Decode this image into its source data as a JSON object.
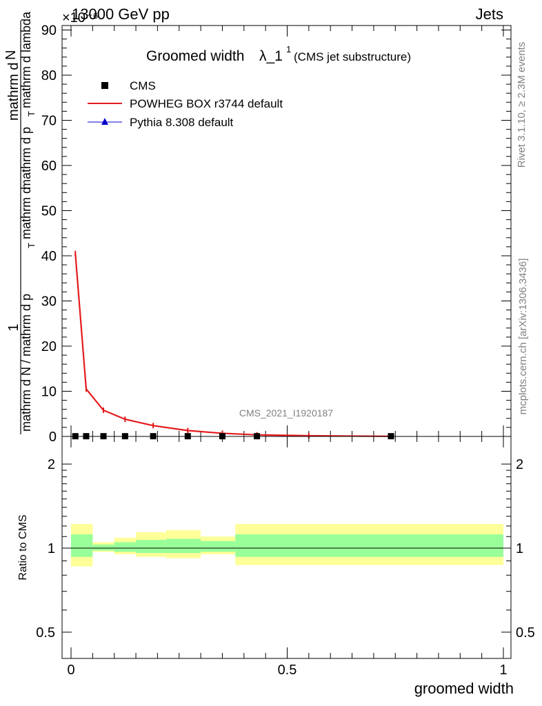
{
  "header": {
    "left": "13000 GeV pp",
    "right": "Jets",
    "exponent": "×10⁻⁶"
  },
  "title": {
    "main": "Groomed width",
    "lambda": "λ_1",
    "sup": "1",
    "sub": "(CMS jet substructure)"
  },
  "side_labels": {
    "rivet": "Rivet 3.1.10, ≥ 2.3M events",
    "mcplots": "mcplots.cern.ch [arXiv:1306.3436]"
  },
  "watermark": "CMS_2021_I1920187",
  "legend": {
    "items": [
      {
        "label": "CMS",
        "marker": "square",
        "color": "#000000"
      },
      {
        "label": "POWHEG BOX r3744 default",
        "marker": "line",
        "color": "#e41a1c"
      },
      {
        "label": "Pythia 8.308 default",
        "marker": "triangle",
        "color": "#0000cc"
      }
    ]
  },
  "y_axis_label": {
    "numerator": "1",
    "denominator": "mathrm d N / mathrm d p",
    "sub": "T",
    "mid": "mathrm d",
    "right_num": "mathrm d",
    "right_num2": "N",
    "right_den": "mathrm d p",
    "right_den_sub": "T",
    "right_den2": "mathrm d lambda"
  },
  "ratio_y_label": "Ratio to CMS",
  "x_axis_label": "groomed width",
  "chart_data": [
    {
      "type": "line",
      "panel": "main",
      "xlim": [
        0,
        1
      ],
      "ylim": [
        0,
        90
      ],
      "y_scale_note": "×10⁻⁶",
      "yticks": [
        0,
        10,
        20,
        30,
        40,
        50,
        60,
        70,
        80,
        90
      ],
      "ytick_labels": [
        "0",
        "10",
        "20",
        "30",
        "40",
        "50",
        "60",
        "70",
        "80",
        "90"
      ],
      "series": [
        {
          "name": "CMS",
          "style": "markers",
          "color": "#000000",
          "x": [
            0.01,
            0.035,
            0.075,
            0.125,
            0.19,
            0.27,
            0.35,
            0.43,
            0.74
          ],
          "y": [
            0.05,
            0.05,
            0.05,
            0.05,
            0.05,
            0.05,
            0.05,
            0.05,
            0.05
          ]
        },
        {
          "name": "POWHEG BOX r3744 default",
          "style": "line",
          "color": "#e41a1c",
          "x": [
            0.01,
            0.035,
            0.075,
            0.125,
            0.19,
            0.27,
            0.35,
            0.43,
            0.55,
            0.74
          ],
          "y": [
            40.5,
            10.5,
            5.8,
            3.8,
            2.4,
            1.3,
            0.7,
            0.35,
            0.15,
            0.03
          ]
        }
      ]
    },
    {
      "type": "area",
      "panel": "ratio",
      "xlim": [
        0,
        1
      ],
      "ylim": [
        0.4,
        2.4
      ],
      "y_scale": "log",
      "yticks": [
        0.5,
        1,
        2
      ],
      "ytick_labels": [
        "0.5",
        "1",
        "2"
      ],
      "xticks": [
        0,
        0.5,
        1
      ],
      "xtick_labels": [
        "0",
        "0.5",
        "1"
      ],
      "bins": [
        0,
        0.05,
        0.1,
        0.15,
        0.22,
        0.3,
        0.38,
        1.0
      ],
      "band_outer_lo": [
        0.86,
        0.97,
        0.95,
        0.93,
        0.92,
        0.95,
        0.87
      ],
      "band_outer_hi": [
        1.22,
        1.05,
        1.09,
        1.14,
        1.16,
        1.1,
        1.22
      ],
      "band_inner_lo": [
        0.93,
        0.98,
        0.97,
        0.96,
        0.96,
        0.97,
        0.93
      ],
      "band_inner_hi": [
        1.12,
        1.03,
        1.05,
        1.07,
        1.08,
        1.06,
        1.12
      ],
      "colors": {
        "outer": "#ffff99",
        "inner": "#99ff99"
      }
    }
  ]
}
